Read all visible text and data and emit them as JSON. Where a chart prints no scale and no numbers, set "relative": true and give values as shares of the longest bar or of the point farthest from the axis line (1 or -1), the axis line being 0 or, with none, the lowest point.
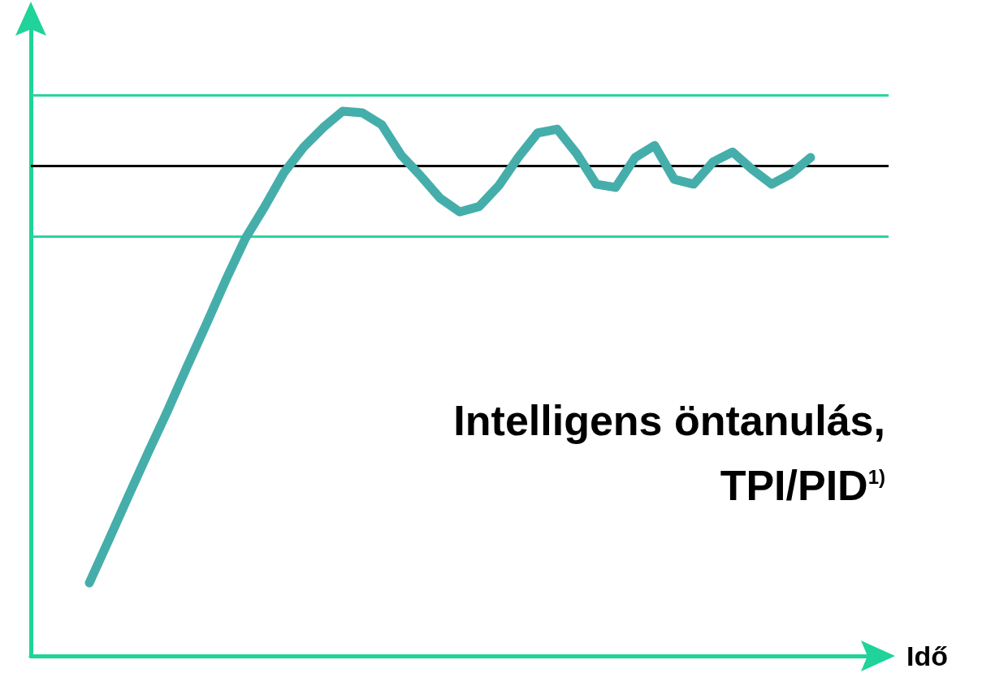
{
  "chart_data": {
    "type": "line",
    "relative": true,
    "xlabel": "Idő",
    "marker": "none",
    "line_style": "solid",
    "categories": [
      null,
      null,
      null,
      null,
      null,
      null,
      null,
      null,
      null,
      null,
      null,
      null,
      null,
      null,
      null,
      null,
      null,
      null,
      null,
      null,
      null,
      null,
      null,
      null,
      null,
      null,
      null,
      null,
      null,
      null,
      null,
      null,
      null,
      null,
      null,
      null,
      null,
      null,
      null,
      null,
      null,
      null,
      null,
      null,
      null
    ],
    "series": [
      {
        "color": "#45aeaa",
        "values": [
          null,
          null,
          null,
          0.134,
          0.213,
          0.293,
          0.372,
          0.449,
          0.53,
          0.609,
          0.69,
          0.766,
          0.825,
          0.888,
          0.934,
          0.97,
          1.0,
          0.997,
          0.975,
          0.919,
          0.881,
          0.84,
          0.815,
          0.825,
          0.863,
          0.915,
          0.96,
          0.967,
          0.922,
          0.866,
          0.86,
          0.915,
          0.937,
          0.875,
          0.866,
          0.907,
          0.925,
          0.893,
          0.866,
          0.885,
          0.915,
          null,
          null,
          null,
          null
        ]
      }
    ],
    "ref_lines": [
      {
        "axis": "y",
        "value": 1.03,
        "color": "#2ed3a0"
      },
      {
        "axis": "y",
        "value": 0.899,
        "color": "#000000"
      },
      {
        "axis": "y",
        "value": 0.766,
        "color": "#2ed3a0"
      }
    ],
    "annotations": [
      "Intelligens öntanulás,\nTPI/PID$^{1)}$"
    ]
  }
}
